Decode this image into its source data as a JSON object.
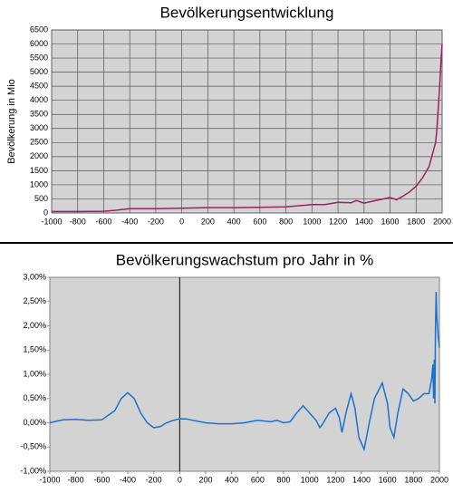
{
  "chart_data": [
    {
      "type": "line",
      "title": "Bevölkerungsentwicklung",
      "y_label": "Bevölkerung in Mio",
      "color": "#a0205c",
      "grid": true,
      "x": [
        -1000,
        -800,
        -600,
        -500,
        -400,
        -200,
        0,
        200,
        400,
        600,
        800,
        1000,
        1100,
        1200,
        1300,
        1340,
        1400,
        1500,
        1600,
        1650,
        1700,
        1750,
        1800,
        1850,
        1900,
        1950,
        1960,
        1970,
        1980,
        1990,
        2000
      ],
      "values": [
        50,
        50,
        60,
        100,
        150,
        150,
        170,
        190,
        190,
        200,
        220,
        300,
        300,
        380,
        360,
        440,
        350,
        450,
        550,
        470,
        600,
        750,
        950,
        1250,
        1650,
        2500,
        3000,
        3700,
        4400,
        5300,
        6000
      ],
      "xlim": [
        -1000,
        2000
      ],
      "xticks": [
        -1000,
        -800,
        -600,
        -400,
        -200,
        0,
        200,
        400,
        600,
        800,
        1000,
        1200,
        1400,
        1600,
        1800,
        2000
      ],
      "ylim": [
        0,
        6500
      ],
      "yticks": [
        0,
        500,
        1000,
        1500,
        2000,
        2500,
        3000,
        3500,
        4000,
        4500,
        5000,
        5500,
        6000,
        6500
      ]
    },
    {
      "type": "line",
      "title": "Bevölkerungswachstum pro Jahr in %",
      "color": "#1a72d0",
      "grid": false,
      "x": [
        -1000,
        -900,
        -800,
        -700,
        -600,
        -500,
        -450,
        -400,
        -350,
        -300,
        -250,
        -200,
        -150,
        -100,
        -50,
        0,
        50,
        100,
        200,
        300,
        400,
        500,
        600,
        700,
        750,
        800,
        850,
        900,
        950,
        1000,
        1050,
        1080,
        1100,
        1150,
        1200,
        1230,
        1250,
        1280,
        1320,
        1350,
        1380,
        1420,
        1460,
        1500,
        1560,
        1600,
        1620,
        1650,
        1680,
        1720,
        1760,
        1800,
        1840,
        1880,
        1920,
        1940,
        1950,
        1955,
        1960,
        1965,
        1970,
        1975,
        1980,
        1985,
        1990,
        2000
      ],
      "values": [
        0,
        0.06,
        0.07,
        0.05,
        0.06,
        0.25,
        0.5,
        0.62,
        0.5,
        0.2,
        0,
        -0.1,
        -0.08,
        0,
        0.05,
        0.08,
        0.08,
        0.05,
        0,
        -0.02,
        -0.02,
        0,
        0.05,
        0.02,
        0.05,
        0,
        0.02,
        0.2,
        0.35,
        0.2,
        0.05,
        -0.1,
        -0.03,
        0.2,
        0.3,
        0.1,
        -0.2,
        0.2,
        0.6,
        0.3,
        -0.3,
        -0.55,
        0,
        0.5,
        0.82,
        0.4,
        -0.1,
        -0.3,
        0.2,
        0.7,
        0.6,
        0.45,
        0.5,
        0.6,
        0.6,
        0.9,
        1.2,
        0.5,
        1.3,
        0.4,
        2.0,
        2.7,
        2.2,
        2.0,
        1.8,
        1.55
      ],
      "xlim": [
        -1000,
        2000
      ],
      "xticks": [
        -1000,
        -800,
        -600,
        -400,
        -200,
        0,
        200,
        400,
        600,
        800,
        1000,
        1200,
        1400,
        1600,
        1800,
        2000
      ],
      "ylim": [
        -1,
        3
      ],
      "yticks": [
        {
          "value": -1,
          "label": "-1,00%"
        },
        {
          "value": -0.5,
          "label": "-0,50%"
        },
        {
          "value": 0,
          "label": "0,00%"
        },
        {
          "value": 0.5,
          "label": "0,50%"
        },
        {
          "value": 1,
          "label": "1,00%"
        },
        {
          "value": 1.5,
          "label": "1,50%"
        },
        {
          "value": 2,
          "label": "2,00%"
        },
        {
          "value": 2.5,
          "label": "2,50%"
        },
        {
          "value": 3,
          "label": "3,00%"
        }
      ]
    }
  ]
}
